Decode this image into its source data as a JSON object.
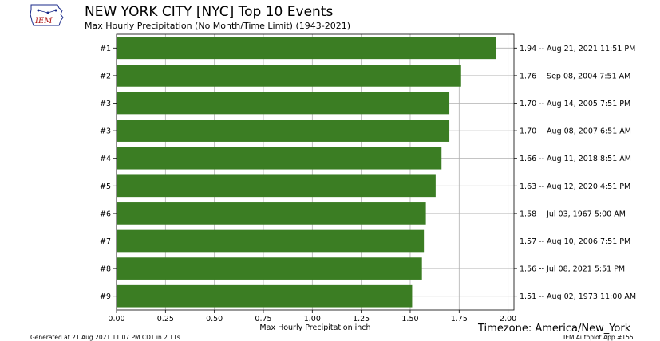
{
  "header": {
    "logo_text": "IEM",
    "title": "NEW YORK CITY [NYC] Top 10 Events",
    "subtitle": "Max Hourly Precipitation  (No Month/Time Limit) (1943-2021)"
  },
  "timezone": "Timezone: America/New_York",
  "footer": {
    "generated": "Generated at 21 Aug 2021 11:07 PM CDT in 2.11s",
    "app": "IEM Autoplot App #155"
  },
  "colors": {
    "bar": "#3b7d23",
    "grid": "#b0b0b0"
  },
  "chart_data": {
    "type": "bar",
    "orientation": "horizontal",
    "xlabel": "Max Hourly Precipitation inch",
    "xlim": [
      0,
      2.03
    ],
    "xticks": [
      0.0,
      0.25,
      0.5,
      0.75,
      1.0,
      1.25,
      1.5,
      1.75,
      2.0
    ],
    "xtick_labels": [
      "0.00",
      "0.25",
      "0.50",
      "0.75",
      "1.00",
      "1.25",
      "1.50",
      "1.75",
      "2.00"
    ],
    "grid": true,
    "categories": [
      "#1",
      "#2",
      "#3",
      "#3",
      "#4",
      "#5",
      "#6",
      "#7",
      "#8",
      "#9"
    ],
    "values": [
      1.94,
      1.76,
      1.7,
      1.7,
      1.66,
      1.63,
      1.58,
      1.57,
      1.56,
      1.51
    ],
    "right_labels": [
      "1.94 -- Aug 21, 2021 11:51 PM",
      "1.76 -- Sep 08, 2004 7:51 AM",
      "1.70 -- Aug 14, 2005 7:51 PM",
      "1.70 -- Aug 08, 2007 6:51 AM",
      "1.66 -- Aug 11, 2018 8:51 AM",
      "1.63 -- Aug 12, 2020 4:51 PM",
      "1.58 -- Jul 03, 1967 5:00 AM",
      "1.57 -- Aug 10, 2006 7:51 PM",
      "1.56 -- Jul 08, 2021 5:51 PM",
      "1.51 -- Aug 02, 1973 11:00 AM"
    ]
  }
}
